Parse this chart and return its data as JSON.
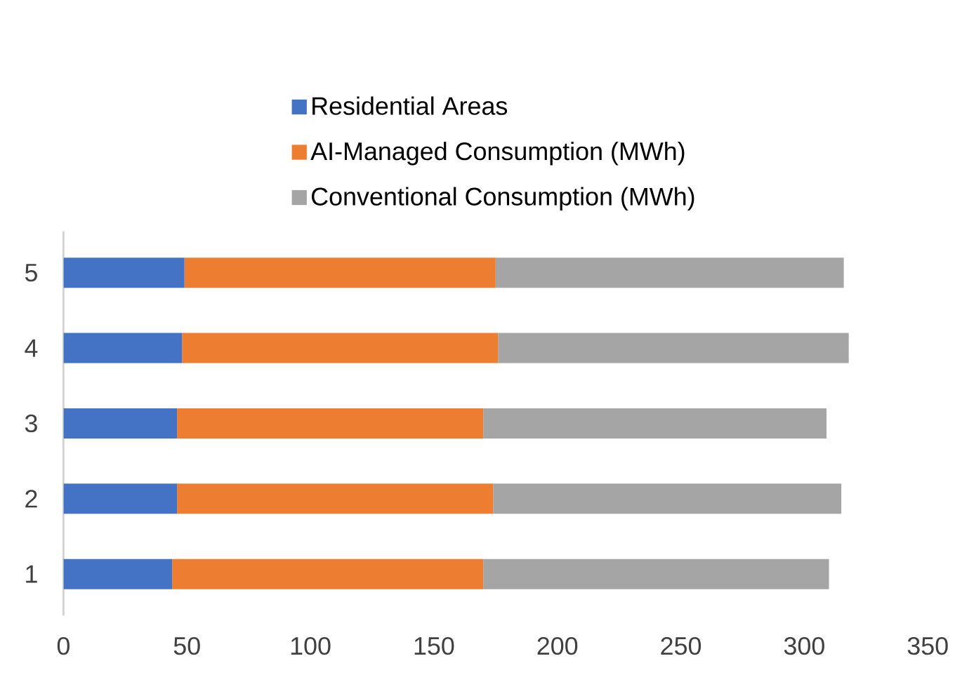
{
  "chart_data": {
    "type": "bar",
    "orientation": "horizontal",
    "stacked": true,
    "categories": [
      "5",
      "4",
      "3",
      "2",
      "1"
    ],
    "series": [
      {
        "name": "Residential Areas",
        "color": "#4472c4",
        "values": [
          49,
          48,
          46,
          46,
          44
        ]
      },
      {
        "name": "AI-Managed Consumption (MWh)",
        "color": "#ed7d31",
        "values": [
          126,
          128,
          124,
          128,
          126
        ]
      },
      {
        "name": "Conventional Consumption (MWh)",
        "color": "#a5a5a5",
        "values": [
          141,
          142,
          139,
          141,
          140
        ]
      }
    ],
    "xlim": [
      0,
      350
    ],
    "xticks": [
      0,
      50,
      100,
      150,
      200,
      250,
      300,
      350
    ],
    "grid": false,
    "legend": "top"
  }
}
